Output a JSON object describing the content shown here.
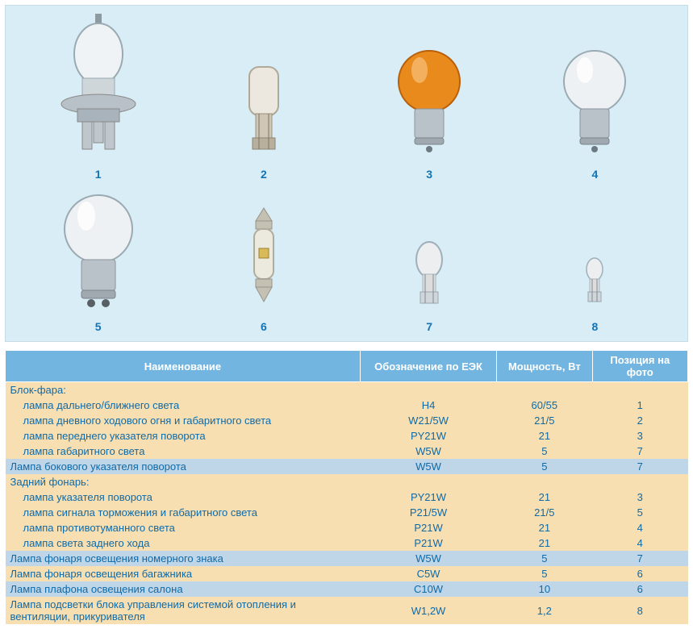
{
  "figure": {
    "background_color": "#d8edf6",
    "label_color": "#1174b6",
    "labels": [
      "1",
      "2",
      "3",
      "4",
      "5",
      "6",
      "7",
      "8"
    ]
  },
  "bulbs": {
    "b1": {
      "glass": "#f0f3f5",
      "outline": "#9aaab2",
      "base": "#a9b3bb",
      "type": "h4"
    },
    "b2": {
      "glass": "#e6e2da",
      "outline": "#afa89a",
      "base": "#cfc6b6",
      "type": "wedge-big"
    },
    "b3": {
      "glass": "#e98a1d",
      "outline": "#b85f0a",
      "base": "#b9c2c8",
      "type": "round-single"
    },
    "b4": {
      "glass": "#eef1f3",
      "outline": "#9aaab2",
      "base": "#b9c2c8",
      "type": "round-single"
    },
    "b5": {
      "glass": "#eef1f3",
      "outline": "#9aaab2",
      "base": "#b9c2c8",
      "type": "round-double"
    },
    "b6": {
      "glass": "#eceade",
      "outline": "#b0ac9c",
      "base": "#c4c0b2",
      "type": "festoon"
    },
    "b7": {
      "glass": "#eceeef",
      "outline": "#9fb0ba",
      "base": "#dddddd",
      "type": "wedge-mid"
    },
    "b8": {
      "glass": "#eceeef",
      "outline": "#9fb0ba",
      "base": "#dddddd",
      "type": "wedge-small"
    }
  },
  "table": {
    "header_bg": "#73b5e1",
    "header_fg": "#ffffff",
    "band_a_bg": "#f7dfb2",
    "band_b_bg": "#bfd6e8",
    "text_color": "#0f6aa8",
    "headers": {
      "name": "Наименование",
      "code": "Обозначение по ЕЭК",
      "power": "Мощность, Вт",
      "pos": "Позиция на фото"
    },
    "rows": [
      {
        "band": "a",
        "indent": false,
        "name": "Блок-фара:",
        "code": "",
        "power": "",
        "pos": ""
      },
      {
        "band": "a",
        "indent": true,
        "name": "лампа дальнего/ближнего света",
        "code": "H4",
        "power": "60/55",
        "pos": "1"
      },
      {
        "band": "a",
        "indent": true,
        "name": "лампа дневного ходового огня и габаритного света",
        "code": "W21/5W",
        "power": "21/5",
        "pos": "2"
      },
      {
        "band": "a",
        "indent": true,
        "name": "лампа переднего указателя поворота",
        "code": "PY21W",
        "power": "21",
        "pos": "3"
      },
      {
        "band": "a",
        "indent": true,
        "name": "лампа габаритного света",
        "code": "W5W",
        "power": "5",
        "pos": "7"
      },
      {
        "band": "b",
        "indent": false,
        "name": "Лампа бокового указателя поворота",
        "code": "W5W",
        "power": "5",
        "pos": "7"
      },
      {
        "band": "a",
        "indent": false,
        "name": "Задний фонарь:",
        "code": "",
        "power": "",
        "pos": ""
      },
      {
        "band": "a",
        "indent": true,
        "name": "лампа указателя поворота",
        "code": "PY21W",
        "power": "21",
        "pos": "3"
      },
      {
        "band": "a",
        "indent": true,
        "name": "лампа сигнала торможения и габаритного света",
        "code": "P21/5W",
        "power": "21/5",
        "pos": "5"
      },
      {
        "band": "a",
        "indent": true,
        "name": "лампа противотуманного света",
        "code": "P21W",
        "power": "21",
        "pos": "4"
      },
      {
        "band": "a",
        "indent": true,
        "name": "лампа света заднего хода",
        "code": "P21W",
        "power": "21",
        "pos": "4"
      },
      {
        "band": "b",
        "indent": false,
        "name": "Лампа фонаря освещения номерного знака",
        "code": "W5W",
        "power": "5",
        "pos": "7"
      },
      {
        "band": "a",
        "indent": false,
        "name": "Лампа фонаря освещения багажника",
        "code": "C5W",
        "power": "5",
        "pos": "6"
      },
      {
        "band": "b",
        "indent": false,
        "name": "Лампа плафона освещения салона",
        "code": "C10W",
        "power": "10",
        "pos": "6"
      },
      {
        "band": "a",
        "indent": false,
        "name": "Лампа подсветки блока управления системой отопления и вентиляции, прикуривателя",
        "code": "W1,2W",
        "power": "1,2",
        "pos": "8"
      }
    ]
  }
}
